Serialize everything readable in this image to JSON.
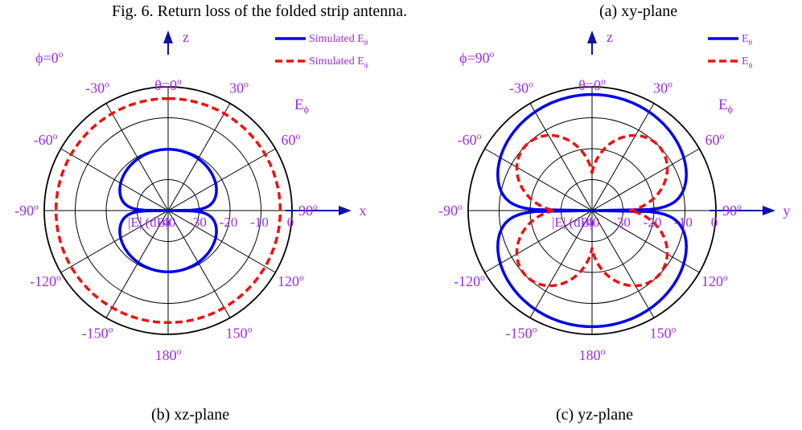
{
  "captions": {
    "top_left": "Fig. 6. Return loss of the folded strip antenna.",
    "top_right": "(a) xy-plane",
    "bottom_left": "(b) xz-plane",
    "bottom_right": "(c) yz-plane"
  },
  "colors": {
    "theta": "#0000ee",
    "phi": "#ee1111",
    "label": "#9a2ee6",
    "axis": "#1010aa"
  },
  "chart_data": [
    {
      "type": "polar-line",
      "plane": "xz-plane",
      "phi_label": "ϕ=0",
      "phi_label_sup": "o",
      "theta_label": "θ=0",
      "theta_label_sup": "o",
      "radial_label": "|E| (dB)",
      "radial_ticks": [
        -40,
        -30,
        -20,
        -10,
        0
      ],
      "radial_tick_labels": [
        "-40",
        "-30",
        "-20",
        "-10",
        "0"
      ],
      "rlim": [
        -40,
        0
      ],
      "angle_labels": [
        "-30",
        "30",
        "-60",
        "60",
        "-90",
        "90",
        "-120",
        "120",
        "-150",
        "150",
        "180"
      ],
      "degree_sup": "o",
      "axis_up": "z",
      "axis_right": "x",
      "annotation": "E",
      "annotation_sub": "ϕ",
      "legend": [
        {
          "name": "Simulated E",
          "sub": "θ",
          "style": "solid"
        },
        {
          "name": "Simulated E",
          "sub": "ϕ",
          "style": "dashed"
        }
      ],
      "series": [
        {
          "name": "Simulated Eθ",
          "style": "solid",
          "pattern": "dipole-vertical-lobes",
          "peak_db": -20.2,
          "floor_db": -40
        },
        {
          "name": "Simulated Eϕ",
          "style": "dashed",
          "pattern": "omni",
          "level_db": -3.8
        }
      ]
    },
    {
      "type": "polar-line",
      "plane": "yz-plane",
      "phi_label": "ϕ=90",
      "phi_label_sup": "o",
      "theta_label": "θ=0",
      "theta_label_sup": "o",
      "radial_label": "|E| (dB)",
      "radial_ticks": [
        -40,
        -30,
        -20,
        -10,
        0
      ],
      "radial_tick_labels": [
        "-40",
        "-30",
        "-20",
        "-10",
        "0"
      ],
      "rlim": [
        -40,
        0
      ],
      "angle_labels": [
        "-30",
        "30",
        "-60",
        "60",
        "-90",
        "90",
        "-120",
        "120",
        "-150",
        "150",
        "180"
      ],
      "degree_sup": "o",
      "axis_up": "z",
      "axis_right": "y",
      "annotation": "E",
      "annotation_sub": "ϕ",
      "legend": [
        {
          "name": "E",
          "sub": "θ",
          "style": "solid"
        },
        {
          "name": "E",
          "sub": "ϕ",
          "style": "dashed"
        }
      ],
      "series": [
        {
          "name": "Eθ",
          "style": "solid",
          "pattern": "dipole-vertical-lobes",
          "peak_db": -2.5,
          "floor_db": -40
        },
        {
          "name": "Eϕ",
          "style": "dashed",
          "pattern": "four-lobe",
          "peak_db": -10,
          "null_db": -28
        }
      ]
    }
  ]
}
